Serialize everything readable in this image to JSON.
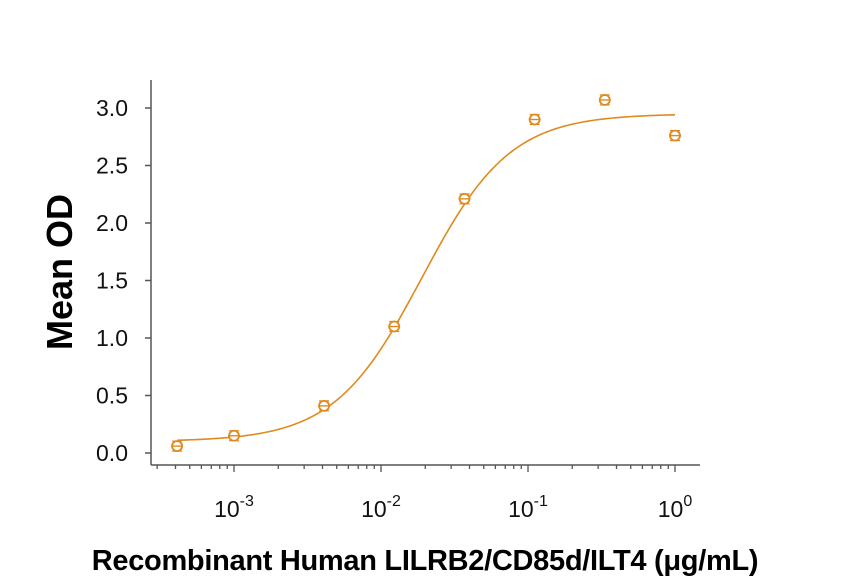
{
  "chart_data": {
    "type": "scatter",
    "title": "",
    "xlabel": "Recombinant Human LILRB2/CD85d/ILT4 (μg/mL)",
    "ylabel": "Mean OD",
    "xscale": "log",
    "xlim": [
      0.00025,
      1.5
    ],
    "ylim": [
      0.0,
      3.2
    ],
    "x_ticks": [
      {
        "value": 0.001,
        "base": "10",
        "exp": "-3"
      },
      {
        "value": 0.01,
        "base": "10",
        "exp": "-2"
      },
      {
        "value": 0.1,
        "base": "10",
        "exp": "-1"
      },
      {
        "value": 1,
        "base": "10",
        "exp": "0"
      }
    ],
    "y_ticks": [
      "0.0",
      "0.5",
      "1.0",
      "1.5",
      "2.0",
      "2.5",
      "3.0"
    ],
    "y_tick_values": [
      0,
      0.5,
      1.0,
      1.5,
      2.0,
      2.5,
      3.0
    ],
    "grid": false,
    "legend": null,
    "color": "#E08A1E",
    "series": [
      {
        "name": "Mean OD",
        "marker": "open-circle-with-error-bar",
        "x": [
          0.00041,
          0.001,
          0.0041,
          0.0123,
          0.037,
          0.111,
          0.333,
          1.0
        ],
        "y": [
          0.06,
          0.15,
          0.41,
          1.1,
          2.21,
          2.9,
          3.07,
          2.76
        ]
      }
    ],
    "fit_curve": {
      "type": "4PL",
      "bottom": 0.1,
      "top": 2.95,
      "ec50": 0.019,
      "hill": 1.45,
      "x_range": [
        0.00041,
        1.0
      ]
    }
  }
}
